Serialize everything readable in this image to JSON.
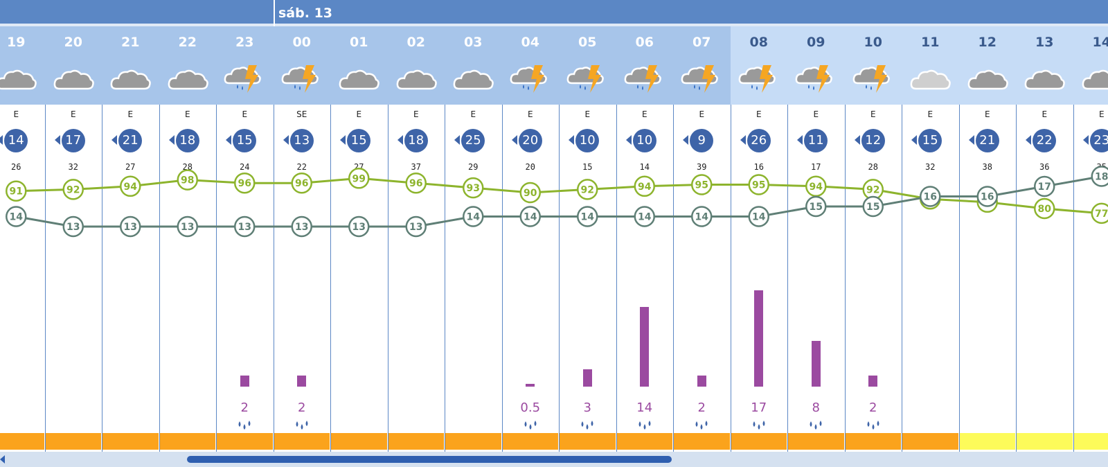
{
  "header": {
    "day_label": "sáb. 13"
  },
  "colors": {
    "topbar": "#5b87c5",
    "night_header": "#a7c5ea",
    "day_header": "#c6dcf6",
    "temperature_line": "#5f7f76",
    "humidity_line": "#8db42d",
    "rain_bar": "#9b4aa0",
    "warning_orange": "#fba31c",
    "warning_yellow": "#fdfb5a"
  },
  "icons": {
    "cloudy": "cloud-icon",
    "storm": "thunderstorm-rain-icon",
    "rain_drops": "rain-drops-icon"
  },
  "chart_data": {
    "type": "table",
    "hours": [
      "19",
      "20",
      "21",
      "22",
      "23",
      "00",
      "01",
      "02",
      "03",
      "04",
      "05",
      "06",
      "07",
      "08",
      "09",
      "10",
      "11",
      "12",
      "13",
      "14"
    ],
    "sky": [
      "cloudy",
      "cloudy",
      "cloudy",
      "cloudy",
      "storm",
      "storm",
      "cloudy",
      "cloudy",
      "cloudy",
      "storm",
      "storm",
      "storm",
      "storm",
      "storm",
      "storm",
      "storm",
      "cloudy",
      "cloudy",
      "cloudy",
      "cloudy"
    ],
    "is_day": [
      false,
      false,
      false,
      false,
      false,
      false,
      false,
      false,
      false,
      false,
      false,
      false,
      false,
      true,
      true,
      true,
      true,
      true,
      true,
      true
    ],
    "wind_direction": [
      "E",
      "E",
      "E",
      "E",
      "E",
      "SE",
      "E",
      "E",
      "E",
      "E",
      "E",
      "E",
      "E",
      "E",
      "E",
      "E",
      "E",
      "E",
      "E",
      "E"
    ],
    "wind_speed": [
      "14",
      "17",
      "21",
      "18",
      "15",
      "13",
      "15",
      "18",
      "25",
      "20",
      "10",
      "10",
      "9",
      "26",
      "11",
      "12",
      "15",
      "21",
      "22",
      "23"
    ],
    "wind_gust": [
      "26",
      "32",
      "27",
      "28",
      "24",
      "22",
      "27",
      "37",
      "29",
      "20",
      "15",
      "14",
      "39",
      "16",
      "17",
      "28",
      "32",
      "38",
      "36",
      "35"
    ],
    "humidity": [
      91,
      92,
      94,
      98,
      96,
      96,
      99,
      96,
      93,
      90,
      92,
      94,
      95,
      95,
      94,
      92,
      86,
      84,
      80,
      77
    ],
    "temperature": [
      14,
      13,
      13,
      13,
      13,
      13,
      13,
      13,
      14,
      14,
      14,
      14,
      14,
      14,
      15,
      15,
      16,
      16,
      17,
      18
    ],
    "precipitation": [
      null,
      null,
      null,
      null,
      2,
      2,
      null,
      null,
      null,
      0.5,
      3,
      14,
      2,
      17,
      8,
      2,
      null,
      null,
      null,
      null
    ],
    "precipitation_labels": [
      "",
      "",
      "",
      "",
      "2",
      "2",
      "",
      "",
      "",
      "0.5",
      "3",
      "14",
      "2",
      "17",
      "8",
      "2",
      "",
      "",
      "",
      ""
    ],
    "warning_level": [
      "orange",
      "orange",
      "orange",
      "orange",
      "orange",
      "orange",
      "orange",
      "orange",
      "orange",
      "orange",
      "orange",
      "orange",
      "orange",
      "orange",
      "orange",
      "orange",
      "orange",
      "yellow",
      "yellow",
      "yellow"
    ]
  }
}
